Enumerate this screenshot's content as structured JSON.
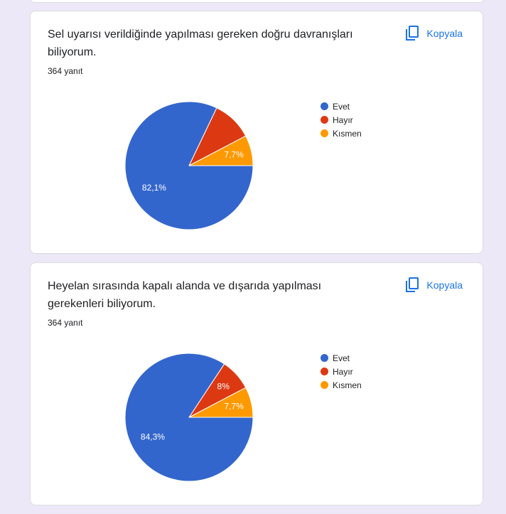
{
  "colors": {
    "Evet": "#3366cc",
    "Hayır": "#dc3912",
    "Kısmen": "#ff9900",
    "accent": "#1a73e8"
  },
  "cards": [
    {
      "title": "Sel uyarısı verildiğinde yapılması gereken doğru davranışları biliyorum.",
      "count": "364 yanıt",
      "copy_label": "Kopyala",
      "slice_labels": {
        "Evet": "82,1%",
        "Hayır": "",
        "Kısmen": "7,7%"
      }
    },
    {
      "title": "Heyelan sırasında kapalı alanda ve dışarıda yapılması gerekenleri biliyorum.",
      "count": "364 yanıt",
      "copy_label": "Kopyala",
      "slice_labels": {
        "Evet": "84,3%",
        "Hayır": "8%",
        "Kısmen": "7,7%"
      }
    }
  ],
  "legend": [
    "Evet",
    "Hayır",
    "Kısmen"
  ],
  "chart_data": [
    {
      "type": "pie",
      "title": "Sel uyarısı verildiğinde yapılması gereken doğru davranışları biliyorum.",
      "subtitle": "364 yanıt",
      "categories": [
        "Evet",
        "Hayır",
        "Kısmen"
      ],
      "values": [
        82.1,
        10.2,
        7.7
      ],
      "legend_position": "right"
    },
    {
      "type": "pie",
      "title": "Heyelan sırasında kapalı alanda ve dışarıda yapılması gerekenleri biliyorum.",
      "subtitle": "364 yanıt",
      "categories": [
        "Evet",
        "Hayır",
        "Kısmen"
      ],
      "values": [
        84.3,
        8.0,
        7.7
      ],
      "legend_position": "right"
    }
  ]
}
